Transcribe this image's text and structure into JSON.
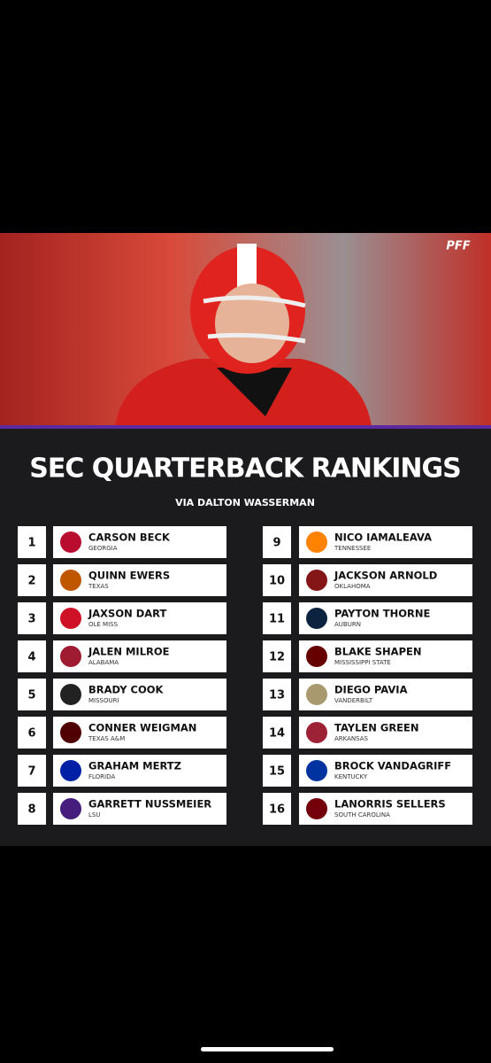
{
  "graphic": {
    "brand": "PFF",
    "title": "SEC QUARTERBACK RANKINGS",
    "subtitle": "VIA DALTON WASSERMAN",
    "players": [
      {
        "rank": 1,
        "name": "CARSON BECK",
        "school": "GEORGIA",
        "logo_color": "#ba0c2f"
      },
      {
        "rank": 2,
        "name": "QUINN EWERS",
        "school": "TEXAS",
        "logo_color": "#bf5700"
      },
      {
        "rank": 3,
        "name": "JAXSON DART",
        "school": "OLE MISS",
        "logo_color": "#ce1126"
      },
      {
        "rank": 4,
        "name": "JALEN MILROE",
        "school": "ALABAMA",
        "logo_color": "#9e1b32"
      },
      {
        "rank": 5,
        "name": "BRADY COOK",
        "school": "MISSOURI",
        "logo_color": "#222222"
      },
      {
        "rank": 6,
        "name": "CONNER WEIGMAN",
        "school": "TEXAS A&M",
        "logo_color": "#500000"
      },
      {
        "rank": 7,
        "name": "GRAHAM MERTZ",
        "school": "FLORIDA",
        "logo_color": "#0021a5"
      },
      {
        "rank": 8,
        "name": "GARRETT NUSSMEIER",
        "school": "LSU",
        "logo_color": "#461d7c"
      },
      {
        "rank": 9,
        "name": "NICO IAMALEAVA",
        "school": "TENNESSEE",
        "logo_color": "#ff8200"
      },
      {
        "rank": 10,
        "name": "JACKSON ARNOLD",
        "school": "OKLAHOMA",
        "logo_color": "#841617"
      },
      {
        "rank": 11,
        "name": "PAYTON THORNE",
        "school": "AUBURN",
        "logo_color": "#0c2340"
      },
      {
        "rank": 12,
        "name": "BLAKE SHAPEN",
        "school": "MISSISSIPPI STATE",
        "logo_color": "#660000"
      },
      {
        "rank": 13,
        "name": "DIEGO PAVIA",
        "school": "VANDERBILT",
        "logo_color": "#a8996e"
      },
      {
        "rank": 14,
        "name": "TAYLEN GREEN",
        "school": "ARKANSAS",
        "logo_color": "#9d2235"
      },
      {
        "rank": 15,
        "name": "BROCK VANDAGRIFF",
        "school": "KENTUCKY",
        "logo_color": "#0033a0"
      },
      {
        "rank": 16,
        "name": "LANORRIS SELLERS",
        "school": "SOUTH CAROLINA",
        "logo_color": "#73000a"
      }
    ]
  }
}
